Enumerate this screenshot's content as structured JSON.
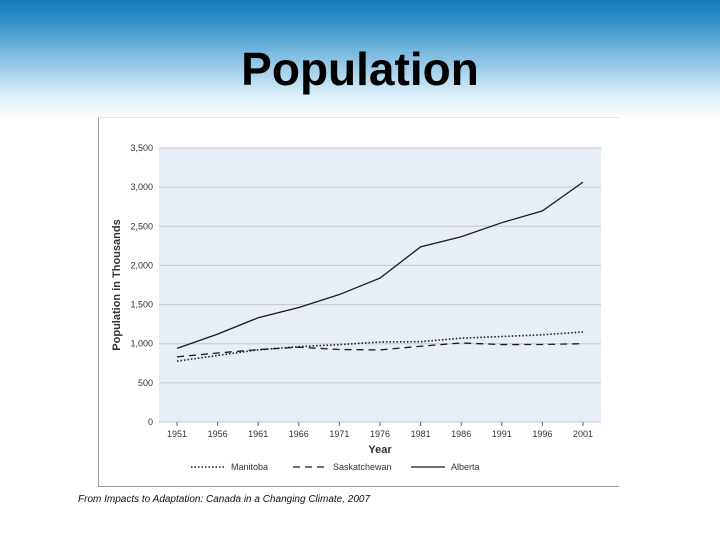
{
  "slide": {
    "title": "Population",
    "caption": "From Impacts to Adaptation: Canada in a Changing Climate, 2007"
  },
  "colors": {
    "banner_top": "#1478b8",
    "plot_background": "#e8eef6",
    "gridline": "#c2c7cc",
    "series_line": "#1a1a1a"
  },
  "chart_data": {
    "type": "line",
    "xlabel": "Year",
    "ylabel": "Population in Thousands",
    "ylim": [
      0,
      3500
    ],
    "xlim": [
      1951,
      2001
    ],
    "x_ticks": [
      "1951",
      "1956",
      "1961",
      "1966",
      "1971",
      "1976",
      "1981",
      "1986",
      "1991",
      "1996",
      "2001"
    ],
    "y_ticks": [
      "0",
      "500",
      "1,000",
      "1,500",
      "2,000",
      "2,500",
      "3,000",
      "3,500"
    ],
    "grid": "horizontal",
    "legend_position": "bottom",
    "x": [
      1951,
      1956,
      1961,
      1966,
      1971,
      1976,
      1981,
      1986,
      1991,
      1996,
      2001
    ],
    "series": [
      {
        "name": "Manitoba",
        "style": "dotted",
        "values": [
          777,
          850,
          922,
          963,
          988,
          1022,
          1026,
          1071,
          1092,
          1114,
          1150
        ]
      },
      {
        "name": "Saskatchewan",
        "style": "dashed",
        "values": [
          832,
          881,
          925,
          955,
          926,
          921,
          968,
          1010,
          989,
          990,
          1000
        ]
      },
      {
        "name": "Alberta",
        "style": "solid",
        "values": [
          940,
          1123,
          1332,
          1463,
          1628,
          1838,
          2237,
          2366,
          2546,
          2697,
          3064
        ]
      }
    ]
  }
}
